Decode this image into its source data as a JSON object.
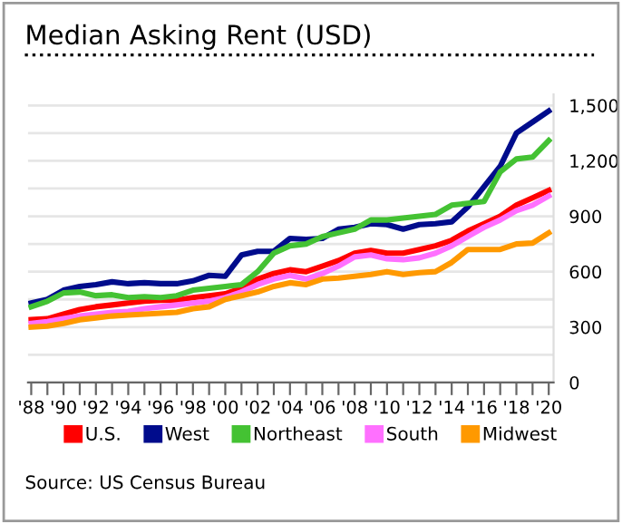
{
  "chart_data": {
    "type": "line",
    "title": "Median Asking Rent (USD)",
    "x": [
      1988,
      1989,
      1990,
      1991,
      1992,
      1993,
      1994,
      1995,
      1996,
      1997,
      1998,
      1999,
      2000,
      2001,
      2002,
      2003,
      2004,
      2005,
      2006,
      2007,
      2008,
      2009,
      2010,
      2011,
      2012,
      2013,
      2014,
      2015,
      2016,
      2017,
      2018,
      2019,
      2020
    ],
    "series": [
      {
        "name": "U.S.",
        "color": "#ff0000",
        "values": [
          340,
          345,
          370,
          395,
          410,
          420,
          430,
          440,
          445,
          445,
          460,
          470,
          480,
          510,
          560,
          590,
          610,
          600,
          630,
          660,
          700,
          715,
          700,
          700,
          720,
          740,
          770,
          820,
          860,
          900,
          960,
          1000,
          1040
        ]
      },
      {
        "name": "West",
        "color": "#000c8c",
        "values": [
          430,
          450,
          500,
          520,
          530,
          545,
          535,
          540,
          535,
          535,
          550,
          580,
          575,
          690,
          710,
          710,
          780,
          775,
          780,
          830,
          840,
          860,
          855,
          830,
          855,
          860,
          870,
          950,
          1060,
          1170,
          1350,
          1410,
          1470
        ]
      },
      {
        "name": "Northeast",
        "color": "#44c233",
        "values": [
          410,
          440,
          485,
          490,
          470,
          475,
          460,
          465,
          460,
          470,
          500,
          510,
          520,
          530,
          600,
          700,
          740,
          750,
          790,
          810,
          830,
          880,
          880,
          890,
          900,
          910,
          960,
          970,
          980,
          1140,
          1210,
          1220,
          1310
        ]
      },
      {
        "name": "South",
        "color": "#ff70ff",
        "values": [
          320,
          330,
          345,
          360,
          370,
          380,
          385,
          400,
          410,
          420,
          430,
          440,
          460,
          490,
          530,
          560,
          580,
          560,
          590,
          630,
          680,
          690,
          670,
          665,
          675,
          700,
          740,
          790,
          840,
          880,
          930,
          960,
          1010
        ]
      },
      {
        "name": "Midwest",
        "color": "#ff9900",
        "values": [
          300,
          305,
          320,
          340,
          350,
          360,
          365,
          370,
          375,
          380,
          400,
          410,
          450,
          470,
          490,
          520,
          540,
          530,
          560,
          565,
          575,
          585,
          600,
          585,
          595,
          600,
          650,
          720,
          720,
          720,
          750,
          755,
          810
        ]
      }
    ],
    "xlim": [
      1987.8,
      2020.3
    ],
    "xticks": [
      {
        "value": 1988,
        "label": "'88"
      },
      {
        "value": 1989,
        "label": null
      },
      {
        "value": 1990,
        "label": "'90"
      },
      {
        "value": 1991,
        "label": null
      },
      {
        "value": 1992,
        "label": "'92"
      },
      {
        "value": 1993,
        "label": null
      },
      {
        "value": 1994,
        "label": "'94"
      },
      {
        "value": 1995,
        "label": null
      },
      {
        "value": 1996,
        "label": "'96"
      },
      {
        "value": 1997,
        "label": null
      },
      {
        "value": 1998,
        "label": "'98"
      },
      {
        "value": 1999,
        "label": null
      },
      {
        "value": 2000,
        "label": "'00"
      },
      {
        "value": 2001,
        "label": null
      },
      {
        "value": 2002,
        "label": "'02"
      },
      {
        "value": 2003,
        "label": null
      },
      {
        "value": 2004,
        "label": "'04"
      },
      {
        "value": 2005,
        "label": null
      },
      {
        "value": 2006,
        "label": "'06"
      },
      {
        "value": 2007,
        "label": null
      },
      {
        "value": 2008,
        "label": "'08"
      },
      {
        "value": 2009,
        "label": null
      },
      {
        "value": 2010,
        "label": "'10"
      },
      {
        "value": 2011,
        "label": null
      },
      {
        "value": 2012,
        "label": "'12"
      },
      {
        "value": 2013,
        "label": null
      },
      {
        "value": 2014,
        "label": "'14"
      },
      {
        "value": 2015,
        "label": null
      },
      {
        "value": 2016,
        "label": "'16"
      },
      {
        "value": 2017,
        "label": null
      },
      {
        "value": 2018,
        "label": "'18"
      },
      {
        "value": 2019,
        "label": null
      },
      {
        "value": 2020,
        "label": "'20"
      }
    ],
    "ylim": [
      0,
      1560
    ],
    "yticks": [
      0,
      {
        "value": 150,
        "label": null
      },
      300,
      {
        "value": 450,
        "label": null
      },
      600,
      {
        "value": 750,
        "label": null
      },
      {
        "value": 900,
        "label": "900"
      },
      {
        "value": 1050,
        "label": null
      },
      {
        "value": 1200,
        "label": "1,200"
      },
      {
        "value": 1350,
        "label": null
      },
      {
        "value": 1500,
        "label": "1,500"
      }
    ],
    "grid": "y",
    "legend": "bottom",
    "marker": "none",
    "line_style": "solid",
    "annotations": [
      "Source: US Census Bureau"
    ]
  }
}
